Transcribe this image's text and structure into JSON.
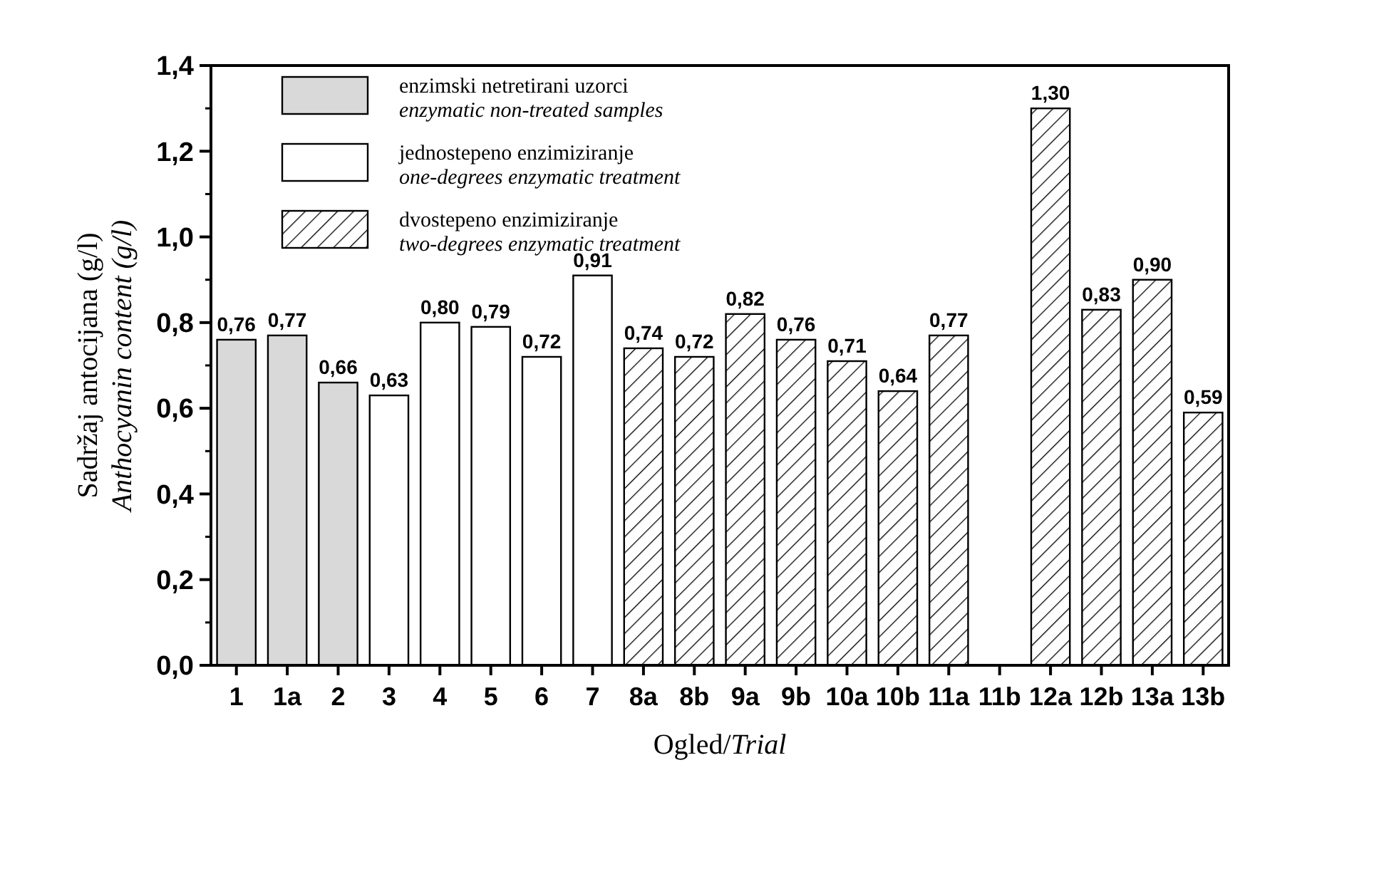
{
  "chart_data": {
    "type": "bar",
    "xlabel": "Ogled/Trial",
    "ylabel": "Sadržaj antocijana (g/l)\nAnthocyanin content (g/l)",
    "categories": [
      "1",
      "1a",
      "2",
      "3",
      "4",
      "5",
      "6",
      "7",
      "8a",
      "8b",
      "9a",
      "9b",
      "10a",
      "10b",
      "11a",
      "11b",
      "12a",
      "12b",
      "13a",
      "13b"
    ],
    "series": [
      {
        "name": "enzimski netretirani uzorci\nenzymatic non-treated samples",
        "color": "#d9d9d9",
        "values": [
          0.76,
          0.77,
          0.66,
          null,
          null,
          null,
          null,
          null,
          null,
          null,
          null,
          null,
          null,
          null,
          null,
          null,
          null,
          null,
          null,
          null
        ],
        "value_labels": [
          "0,76",
          "0,77",
          "0,66",
          null,
          null,
          null,
          null,
          null,
          null,
          null,
          null,
          null,
          null,
          null,
          null,
          null,
          null,
          null,
          null,
          null
        ]
      },
      {
        "name": "jednostepeno enzimiziranje\none-degrees enzymatic treatment",
        "color": "#ffffff",
        "values": [
          null,
          null,
          null,
          0.63,
          0.8,
          0.79,
          0.72,
          0.91,
          null,
          null,
          null,
          null,
          null,
          null,
          null,
          null,
          null,
          null,
          null,
          null
        ],
        "value_labels": [
          null,
          null,
          null,
          "0,63",
          "0,80",
          "0,79",
          "0,72",
          "0,91",
          null,
          null,
          null,
          null,
          null,
          null,
          null,
          null,
          null,
          null,
          null,
          null
        ]
      },
      {
        "name": "dvostepeno enzimiziranje\ntwo-degrees enzymatic treatment",
        "color": "#000000",
        "values": [
          null,
          null,
          null,
          null,
          null,
          null,
          null,
          null,
          0.74,
          0.72,
          0.82,
          0.76,
          0.71,
          0.64,
          0.77,
          null,
          1.3,
          0.83,
          0.9,
          0.59
        ],
        "value_labels": [
          null,
          null,
          null,
          null,
          null,
          null,
          null,
          null,
          "0,74",
          "0,72",
          "0,82",
          "0,76",
          "0,71",
          "0,64",
          "0,77",
          null,
          "1,30",
          "0,83",
          "0,90",
          "0,59"
        ]
      }
    ],
    "ylim": [
      0,
      1.4
    ],
    "yticks": [
      {
        "value": 0,
        "label": "0,0"
      },
      {
        "value": 0.2,
        "label": "0,2"
      },
      {
        "value": 0.4,
        "label": "0,4"
      },
      {
        "value": 0.6,
        "label": "0,6"
      },
      {
        "value": 0.8,
        "label": "0,8"
      },
      {
        "value": 1,
        "label": "1,0"
      },
      {
        "value": 1.2,
        "label": "1,2"
      },
      {
        "value": 1.4,
        "label": "1,4"
      }
    ],
    "grid": false,
    "legend": "top left"
  }
}
